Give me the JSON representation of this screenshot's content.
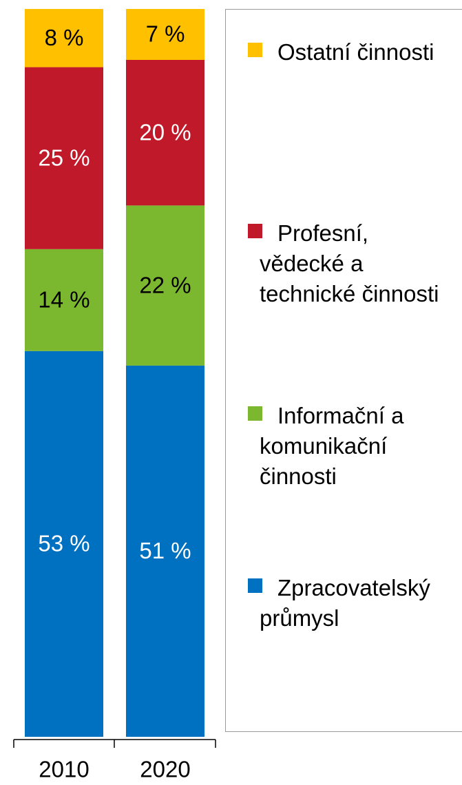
{
  "chart_data": {
    "type": "stacked_bar",
    "categories": [
      "2010",
      "2020"
    ],
    "ylim": [
      0,
      100
    ],
    "series": [
      {
        "name": "Zpracovatelský průmysl",
        "color": "#0070c0",
        "label_color": "#ffffff",
        "values": [
          53,
          51
        ],
        "value_labels": [
          "53 %",
          "51 %"
        ]
      },
      {
        "name": "Informační a komunikační činnosti",
        "color": "#7cb82f",
        "label_color": "#000000",
        "values": [
          14,
          22
        ],
        "value_labels": [
          "14 %",
          "22 %"
        ]
      },
      {
        "name": "Profesní, vědecké a technické činnosti",
        "color": "#c0192a",
        "label_color": "#ffffff",
        "values": [
          25,
          20
        ],
        "value_labels": [
          "25 %",
          "20 %"
        ]
      },
      {
        "name": "Ostatní činnosti",
        "color": "#ffc000",
        "label_color": "#000000",
        "values": [
          8,
          7
        ],
        "value_labels": [
          "8 %",
          "7 %"
        ]
      }
    ]
  }
}
